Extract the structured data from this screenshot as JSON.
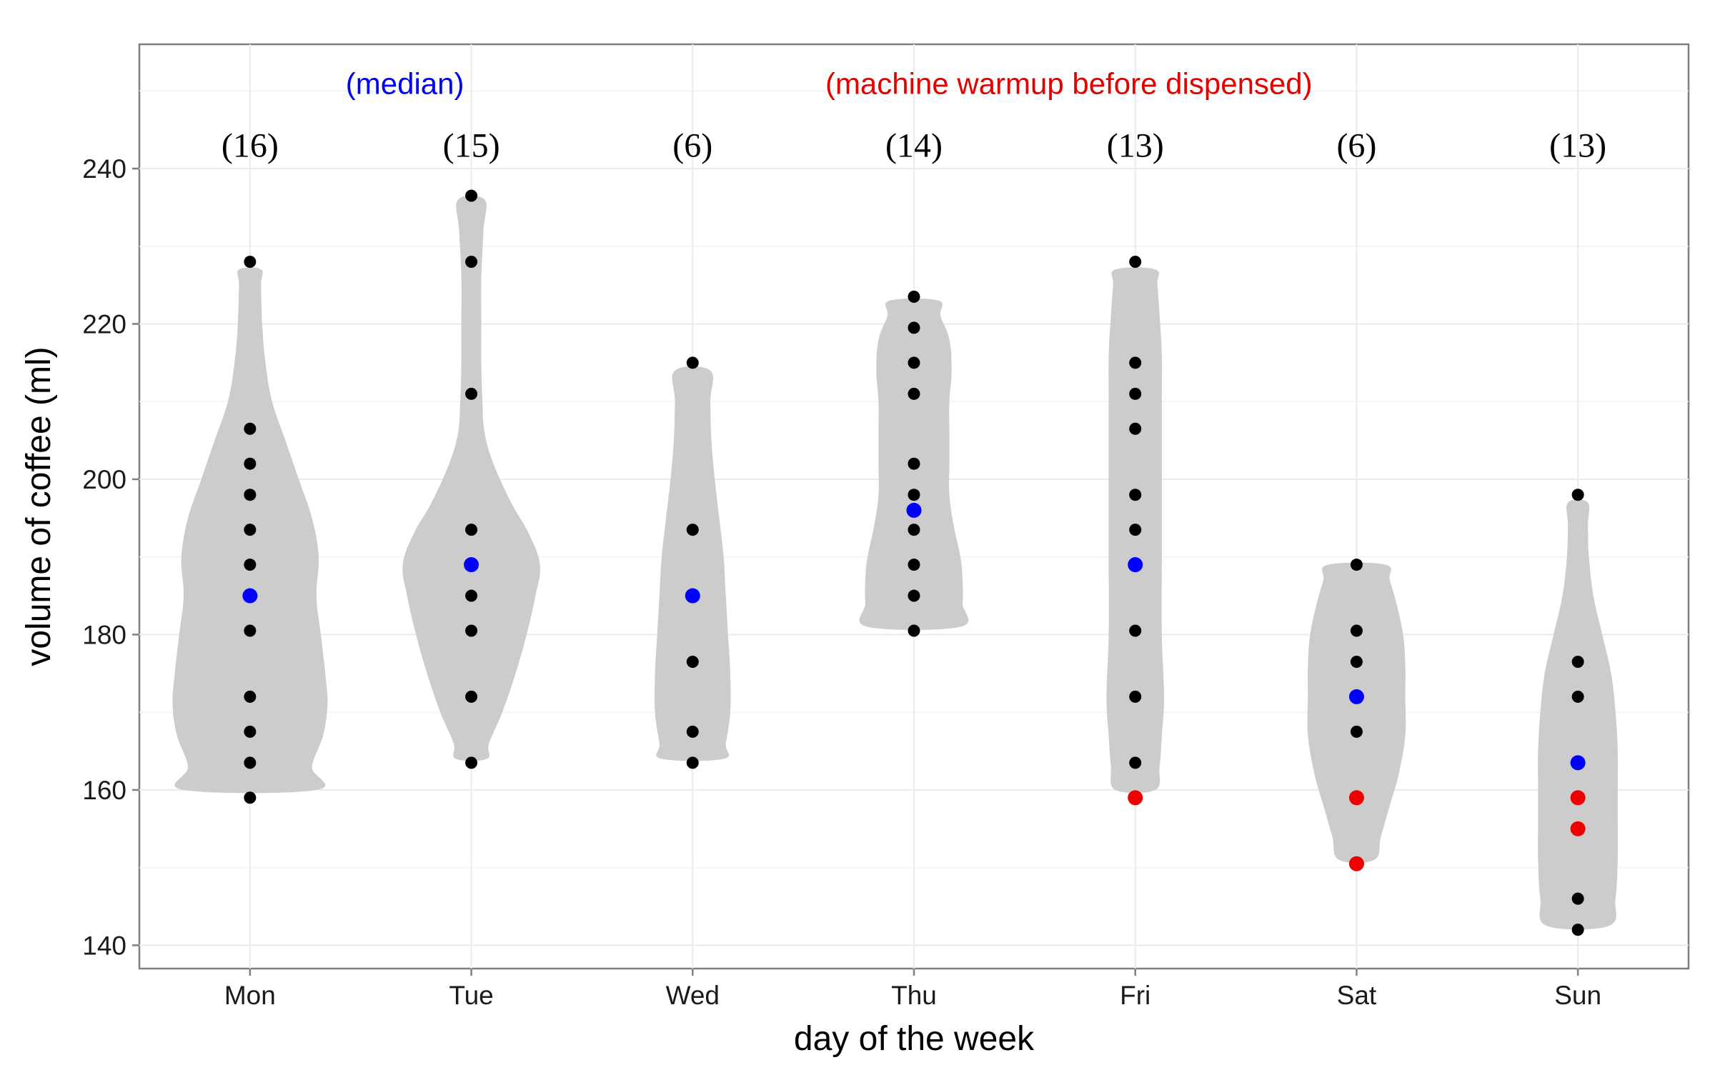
{
  "chart_data": {
    "type": "violin",
    "xlabel": "day of the week",
    "ylabel": "volume of coffee (ml)",
    "ylim": [
      137,
      256
    ],
    "yticks": [
      140,
      160,
      180,
      200,
      220,
      240
    ],
    "grid": true,
    "annotations": [
      {
        "text": "(median)",
        "color": "#0000ff",
        "anchor_category": "Mon",
        "anchor_offset": 0.7
      },
      {
        "text": "(machine warmup before dispensed)",
        "color": "#e50000",
        "anchor_category": "Thu",
        "anchor_offset": 0.7
      }
    ],
    "categories": [
      "Mon",
      "Tue",
      "Wed",
      "Thu",
      "Fri",
      "Sat",
      "Sun"
    ],
    "counts": [
      "(16)",
      "(15)",
      "(6)",
      "(14)",
      "(13)",
      "(6)",
      "(13)"
    ],
    "colors": {
      "normal": "#000000",
      "median": "#0000ff",
      "warmup": "#ee0000",
      "violin": "#cccccc"
    },
    "series": [
      {
        "category": "Mon",
        "points": [
          {
            "y": 228,
            "kind": "normal"
          },
          {
            "y": 206.5,
            "kind": "normal"
          },
          {
            "y": 202,
            "kind": "normal"
          },
          {
            "y": 198,
            "kind": "normal"
          },
          {
            "y": 193.5,
            "kind": "normal"
          },
          {
            "y": 189,
            "kind": "normal"
          },
          {
            "y": 185,
            "kind": "median"
          },
          {
            "y": 180.5,
            "kind": "normal"
          },
          {
            "y": 172,
            "kind": "normal"
          },
          {
            "y": 167.5,
            "kind": "normal"
          },
          {
            "y": 163.5,
            "kind": "normal"
          },
          {
            "y": 159,
            "kind": "normal"
          }
        ],
        "violin": [
          [
            160,
            0.3
          ],
          [
            163,
            0.28
          ],
          [
            167,
            0.33
          ],
          [
            171,
            0.35
          ],
          [
            175,
            0.34
          ],
          [
            180,
            0.32
          ],
          [
            185,
            0.3
          ],
          [
            190,
            0.31
          ],
          [
            195,
            0.28
          ],
          [
            200,
            0.22
          ],
          [
            205,
            0.16
          ],
          [
            210,
            0.1
          ],
          [
            215,
            0.07
          ],
          [
            220,
            0.055
          ],
          [
            225,
            0.05
          ],
          [
            227,
            0.05
          ]
        ]
      },
      {
        "category": "Tue",
        "points": [
          {
            "y": 236.5,
            "kind": "normal"
          },
          {
            "y": 228,
            "kind": "normal"
          },
          {
            "y": 211,
            "kind": "normal"
          },
          {
            "y": 193.5,
            "kind": "normal"
          },
          {
            "y": 189,
            "kind": "median"
          },
          {
            "y": 185,
            "kind": "normal"
          },
          {
            "y": 180.5,
            "kind": "normal"
          },
          {
            "y": 172,
            "kind": "normal"
          },
          {
            "y": 163.5,
            "kind": "normal"
          }
        ],
        "violin": [
          [
            164,
            0.07
          ],
          [
            166,
            0.08
          ],
          [
            170,
            0.14
          ],
          [
            175,
            0.2
          ],
          [
            180,
            0.25
          ],
          [
            185,
            0.29
          ],
          [
            189,
            0.31
          ],
          [
            193,
            0.26
          ],
          [
            197,
            0.18
          ],
          [
            202,
            0.1
          ],
          [
            206,
            0.06
          ],
          [
            210,
            0.05
          ],
          [
            215,
            0.045
          ],
          [
            220,
            0.045
          ],
          [
            226,
            0.045
          ],
          [
            232,
            0.055
          ],
          [
            236,
            0.06
          ]
        ]
      },
      {
        "category": "Wed",
        "points": [
          {
            "y": 215,
            "kind": "normal"
          },
          {
            "y": 193.5,
            "kind": "normal"
          },
          {
            "y": 185,
            "kind": "median"
          },
          {
            "y": 176.5,
            "kind": "normal"
          },
          {
            "y": 167.5,
            "kind": "normal"
          },
          {
            "y": 163.5,
            "kind": "normal"
          }
        ],
        "violin": [
          [
            164,
            0.14
          ],
          [
            166,
            0.15
          ],
          [
            170,
            0.17
          ],
          [
            175,
            0.17
          ],
          [
            180,
            0.16
          ],
          [
            185,
            0.15
          ],
          [
            190,
            0.14
          ],
          [
            195,
            0.12
          ],
          [
            200,
            0.1
          ],
          [
            205,
            0.085
          ],
          [
            210,
            0.08
          ],
          [
            214,
            0.08
          ]
        ]
      },
      {
        "category": "Thu",
        "points": [
          {
            "y": 223.5,
            "kind": "normal"
          },
          {
            "y": 219.5,
            "kind": "normal"
          },
          {
            "y": 215,
            "kind": "normal"
          },
          {
            "y": 211,
            "kind": "normal"
          },
          {
            "y": 202,
            "kind": "normal"
          },
          {
            "y": 198,
            "kind": "normal"
          },
          {
            "y": 196,
            "kind": "median"
          },
          {
            "y": 193.5,
            "kind": "normal"
          },
          {
            "y": 189,
            "kind": "normal"
          },
          {
            "y": 185,
            "kind": "normal"
          },
          {
            "y": 180.5,
            "kind": "normal"
          }
        ],
        "violin": [
          [
            181,
            0.21
          ],
          [
            184,
            0.22
          ],
          [
            187,
            0.22
          ],
          [
            190,
            0.21
          ],
          [
            194,
            0.18
          ],
          [
            198,
            0.16
          ],
          [
            202,
            0.16
          ],
          [
            206,
            0.16
          ],
          [
            210,
            0.16
          ],
          [
            214,
            0.17
          ],
          [
            218,
            0.16
          ],
          [
            221,
            0.12
          ],
          [
            223,
            0.11
          ]
        ]
      },
      {
        "category": "Fri",
        "points": [
          {
            "y": 228,
            "kind": "normal"
          },
          {
            "y": 215,
            "kind": "normal"
          },
          {
            "y": 211,
            "kind": "normal"
          },
          {
            "y": 206.5,
            "kind": "normal"
          },
          {
            "y": 198,
            "kind": "normal"
          },
          {
            "y": 193.5,
            "kind": "normal"
          },
          {
            "y": 189,
            "kind": "median"
          },
          {
            "y": 180.5,
            "kind": "normal"
          },
          {
            "y": 172,
            "kind": "normal"
          },
          {
            "y": 163.5,
            "kind": "normal"
          },
          {
            "y": 159,
            "kind": "warmup"
          }
        ],
        "violin": [
          [
            160,
            0.09
          ],
          [
            163,
            0.11
          ],
          [
            167,
            0.12
          ],
          [
            172,
            0.13
          ],
          [
            180,
            0.12
          ],
          [
            190,
            0.12
          ],
          [
            200,
            0.12
          ],
          [
            210,
            0.12
          ],
          [
            216,
            0.12
          ],
          [
            221,
            0.11
          ],
          [
            225,
            0.1
          ],
          [
            227,
            0.09
          ]
        ]
      },
      {
        "category": "Sat",
        "points": [
          {
            "y": 189,
            "kind": "normal"
          },
          {
            "y": 180.5,
            "kind": "normal"
          },
          {
            "y": 176.5,
            "kind": "normal"
          },
          {
            "y": 172,
            "kind": "median"
          },
          {
            "y": 167.5,
            "kind": "normal"
          },
          {
            "y": 159,
            "kind": "warmup"
          },
          {
            "y": 150.5,
            "kind": "warmup"
          }
        ],
        "violin": [
          [
            151,
            0.08
          ],
          [
            154,
            0.11
          ],
          [
            158,
            0.15
          ],
          [
            162,
            0.19
          ],
          [
            167,
            0.22
          ],
          [
            172,
            0.22
          ],
          [
            176,
            0.22
          ],
          [
            180,
            0.21
          ],
          [
            184,
            0.18
          ],
          [
            187,
            0.15
          ],
          [
            189,
            0.13
          ]
        ]
      },
      {
        "category": "Sun",
        "points": [
          {
            "y": 198,
            "kind": "normal"
          },
          {
            "y": 176.5,
            "kind": "normal"
          },
          {
            "y": 172,
            "kind": "normal"
          },
          {
            "y": 163.5,
            "kind": "median"
          },
          {
            "y": 159,
            "kind": "warmup"
          },
          {
            "y": 155,
            "kind": "warmup"
          },
          {
            "y": 146,
            "kind": "normal"
          },
          {
            "y": 142,
            "kind": "normal"
          }
        ],
        "violin": [
          [
            142.5,
            0.14
          ],
          [
            146,
            0.17
          ],
          [
            151,
            0.18
          ],
          [
            156,
            0.18
          ],
          [
            160,
            0.18
          ],
          [
            165,
            0.18
          ],
          [
            170,
            0.17
          ],
          [
            175,
            0.15
          ],
          [
            180,
            0.11
          ],
          [
            185,
            0.07
          ],
          [
            190,
            0.05
          ],
          [
            194,
            0.045
          ],
          [
            197,
            0.045
          ]
        ]
      }
    ]
  }
}
